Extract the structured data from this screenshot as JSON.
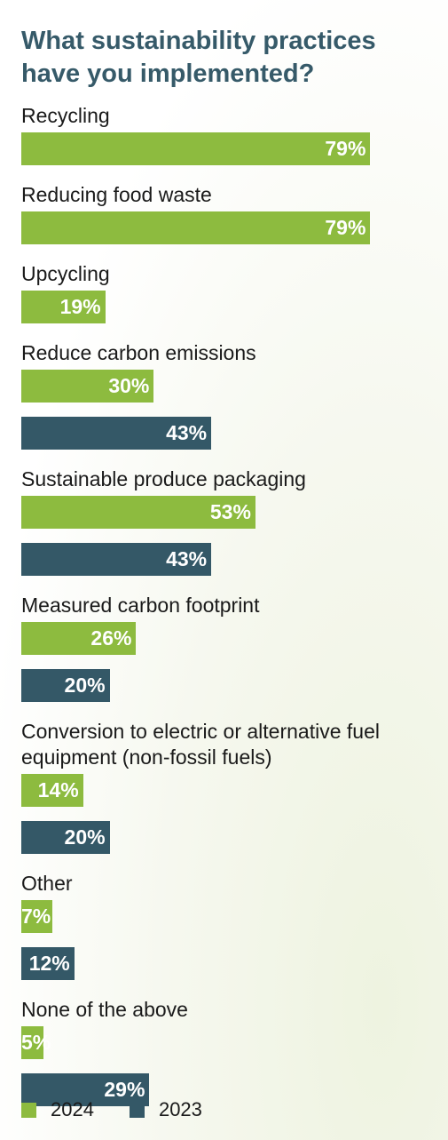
{
  "chart_data": {
    "type": "bar",
    "orientation": "horizontal",
    "title": "What sustainability practices have you implemented?",
    "categories": [
      "Recycling",
      "Reducing food waste",
      "Upcycling",
      "Reduce carbon emissions",
      "Sustainable produce packaging",
      "Measured carbon footprint",
      "Conversion to electric or alternative fuel equipment (non-fossil fuels)",
      "Other",
      "None of the above"
    ],
    "series": [
      {
        "name": "2024",
        "color": "#8dbb3f",
        "values": [
          79,
          79,
          19,
          30,
          53,
          26,
          14,
          7,
          5
        ],
        "labels": [
          "79%",
          "79%",
          "19%",
          "30%",
          "53%",
          "26%",
          "14%",
          "7%",
          "5%"
        ]
      },
      {
        "name": "2023",
        "color": "#345867",
        "values": [
          null,
          null,
          null,
          43,
          43,
          20,
          20,
          12,
          29
        ],
        "labels": [
          null,
          null,
          null,
          "43%",
          "43%",
          "20%",
          "20%",
          "12%",
          "29%"
        ]
      }
    ],
    "xlim": [
      0,
      100
    ],
    "grid": false,
    "legend_position": "bottom-left"
  }
}
